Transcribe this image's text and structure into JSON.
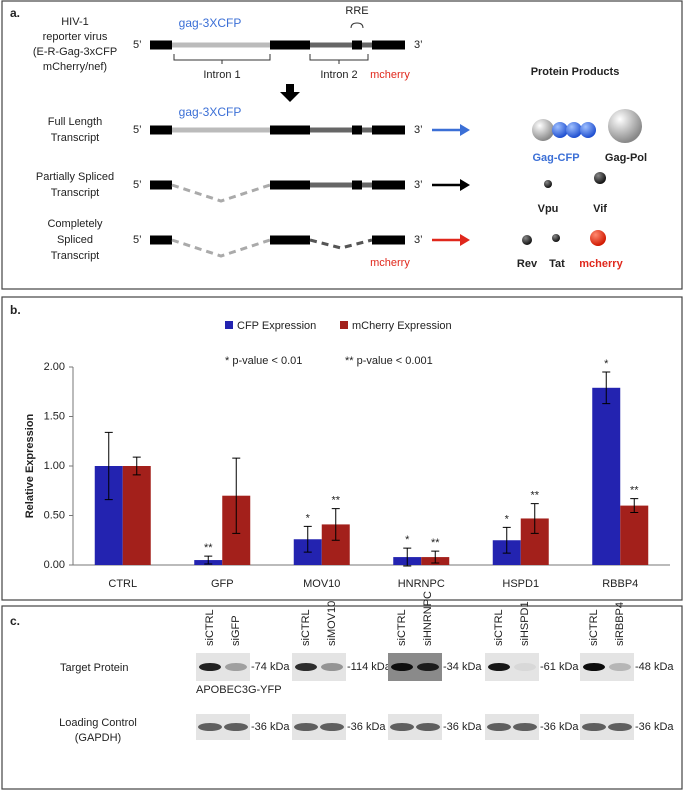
{
  "panel_a": {
    "label": "a.",
    "virus_label": [
      "HIV-1",
      "reporter virus",
      "(E-R-Gag-3xCFP",
      "mCherry/nef)"
    ],
    "gag": "gag-3XCFP",
    "rre": "RRE",
    "intron1": "Intron 1",
    "intron2": "Intron 2",
    "mcherry": "mcherry",
    "five": "5’",
    "three": "3’",
    "transcripts": [
      {
        "label": [
          "Full Length",
          "Transcript"
        ]
      },
      {
        "label": [
          "Partially Spliced",
          "Transcript"
        ]
      },
      {
        "label": [
          "Completely",
          "Spliced",
          "Transcript"
        ]
      }
    ],
    "protein_title": "Protein Products",
    "proteins": [
      "Gag-CFP",
      "Gag-Pol",
      "Vpu",
      "Vif",
      "Rev",
      "Tat",
      "mcherry"
    ]
  },
  "chart_data": {
    "type": "bar",
    "panel_label": "b.",
    "ylabel": "Relative Expression",
    "categories": [
      "CTRL",
      "GFP",
      "MOV10",
      "HNRNPC",
      "HSPD1",
      "RBBP4"
    ],
    "series": [
      {
        "name": "CFP Expression",
        "color": "#2323b0",
        "values": [
          1.0,
          0.05,
          0.26,
          0.08,
          0.25,
          1.79
        ],
        "errors": [
          0.34,
          0.04,
          0.13,
          0.09,
          0.13,
          0.16
        ],
        "significance": [
          null,
          "**",
          "*",
          "*",
          "*",
          "*"
        ]
      },
      {
        "name": "mCherry Expression",
        "color": "#a3201b",
        "values": [
          1.0,
          0.7,
          0.41,
          0.08,
          0.47,
          0.6
        ],
        "errors": [
          0.09,
          0.38,
          0.16,
          0.06,
          0.15,
          0.07
        ],
        "significance": [
          null,
          null,
          "**",
          "**",
          "**",
          "**"
        ]
      }
    ],
    "annotations": [
      "*  p-value < 0.01",
      "**  p-value < 0.001"
    ],
    "ylim": [
      0,
      2.0
    ],
    "yticks": [
      {
        "value": 0,
        "label": "0.00"
      },
      {
        "value": 0.5,
        "label": "0.50"
      },
      {
        "value": 1.0,
        "label": "1.00"
      },
      {
        "value": 1.5,
        "label": "1.50"
      },
      {
        "value": 2.0,
        "label": "2.00"
      }
    ]
  },
  "panel_c": {
    "label": "c.",
    "target_label": "Target Protein",
    "loading_label": [
      "Loading Control",
      "(GAPDH)"
    ],
    "note": "APOBEC3G-YFP",
    "groups": [
      {
        "lanes": [
          "siCTRL",
          "siGFP"
        ],
        "target_kda": "-74 kDa",
        "loading_kda": "-36 kDa"
      },
      {
        "lanes": [
          "siCTRL",
          "siMOV10"
        ],
        "target_kda": "-114 kDa",
        "loading_kda": "-36 kDa"
      },
      {
        "lanes": [
          "siCTRL",
          "siHNRNPC"
        ],
        "target_kda": "-34 kDa",
        "loading_kda": "-36 kDa"
      },
      {
        "lanes": [
          "siCTRL",
          "siHSPD1"
        ],
        "target_kda": "-61 kDa",
        "loading_kda": "-36 kDa"
      },
      {
        "lanes": [
          "siCTRL",
          "siRBBP4"
        ],
        "target_kda": "-48 kDa",
        "loading_kda": "-36 kDa"
      }
    ]
  }
}
